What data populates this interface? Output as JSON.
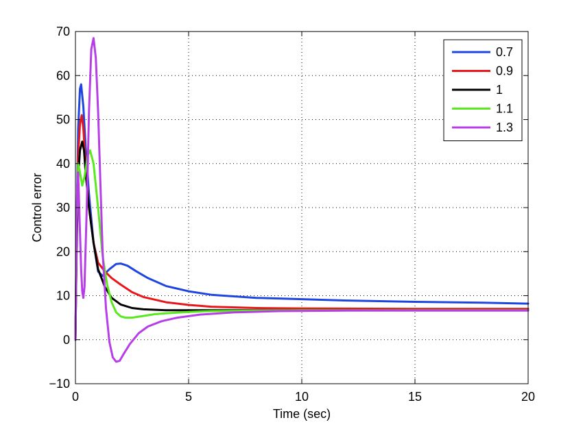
{
  "chart_data": {
    "type": "line",
    "title": "",
    "xlabel": "Time (sec)",
    "ylabel": "Control error",
    "xlim": [
      0,
      20
    ],
    "ylim": [
      -10,
      70
    ],
    "xticks": [
      0,
      5,
      10,
      15,
      20
    ],
    "yticks": [
      -10,
      0,
      10,
      20,
      30,
      40,
      50,
      60,
      70
    ],
    "xtick_labels": [
      "0",
      "5",
      "10",
      "15",
      "20"
    ],
    "ytick_labels": [
      "−10",
      "0",
      "10",
      "20",
      "30",
      "40",
      "50",
      "60",
      "70"
    ],
    "grid": true,
    "legend_position": "top-right",
    "series": [
      {
        "name": "0.7",
        "color": "#1f45e0",
        "x": [
          0,
          0.05,
          0.12,
          0.2,
          0.25,
          0.35,
          0.45,
          0.6,
          0.8,
          1.0,
          1.2,
          1.5,
          1.8,
          2.0,
          2.3,
          2.7,
          3.2,
          4,
          5,
          6,
          8,
          10,
          12,
          15,
          18,
          20
        ],
        "y": [
          0,
          25,
          48,
          57,
          58,
          53,
          44,
          33,
          22,
          15.5,
          14.5,
          16,
          17.2,
          17.3,
          16.8,
          15.5,
          14,
          12.2,
          11,
          10.2,
          9.5,
          9.2,
          8.9,
          8.6,
          8.4,
          8.2
        ]
      },
      {
        "name": "0.9",
        "color": "#e8161a",
        "x": [
          0,
          0.05,
          0.12,
          0.2,
          0.28,
          0.35,
          0.45,
          0.6,
          0.8,
          1.0,
          1.3,
          1.6,
          2.0,
          2.5,
          3,
          4,
          5,
          6,
          8,
          10,
          15,
          20
        ],
        "y": [
          0,
          22,
          42,
          49,
          51,
          48,
          40,
          30,
          22,
          17.5,
          15.5,
          14,
          12.5,
          10.8,
          9.7,
          8.5,
          7.9,
          7.5,
          7.2,
          7.1,
          7.0,
          7.0
        ]
      },
      {
        "name": "1",
        "color": "#000000",
        "x": [
          0,
          0.05,
          0.12,
          0.2,
          0.3,
          0.38,
          0.45,
          0.6,
          0.8,
          1.0,
          1.3,
          1.6,
          2.0,
          2.5,
          3,
          4,
          5,
          10,
          15,
          20
        ],
        "y": [
          0,
          20,
          37,
          43,
          45,
          43,
          38,
          30,
          22,
          16,
          12,
          9.5,
          8,
          7.2,
          6.9,
          6.7,
          6.7,
          6.7,
          6.7,
          6.7
        ]
      },
      {
        "name": "1.1",
        "color": "#5ae81e",
        "x": [
          0,
          0.05,
          0.12,
          0.2,
          0.3,
          0.4,
          0.55,
          0.65,
          0.8,
          1.0,
          1.2,
          1.4,
          1.6,
          1.8,
          2.0,
          2.2,
          2.5,
          3,
          3.5,
          4,
          5,
          6,
          8,
          10,
          15,
          20
        ],
        "y": [
          0,
          25,
          40,
          38,
          35,
          37,
          42,
          43,
          40,
          30,
          19,
          12.5,
          8.5,
          6.2,
          5.3,
          5.0,
          5.0,
          5.4,
          5.8,
          6.0,
          6.3,
          6.5,
          6.6,
          6.7,
          6.7,
          6.7
        ]
      },
      {
        "name": "1.3",
        "color": "#b73ee6",
        "x": [
          0,
          0.04,
          0.08,
          0.12,
          0.18,
          0.25,
          0.3,
          0.35,
          0.4,
          0.5,
          0.6,
          0.7,
          0.8,
          0.9,
          1.0,
          1.1,
          1.2,
          1.35,
          1.5,
          1.65,
          1.8,
          1.95,
          2.1,
          2.4,
          2.8,
          3.2,
          3.8,
          4.5,
          5.5,
          7,
          9,
          12,
          15,
          20
        ],
        "y": [
          0,
          18,
          35,
          38,
          28,
          16,
          11,
          9.5,
          12,
          30,
          52,
          66,
          68.5,
          64,
          52,
          36,
          20,
          7,
          -0.5,
          -4,
          -5,
          -4.8,
          -3.5,
          -1,
          1.5,
          3,
          4.2,
          5.0,
          5.7,
          6.2,
          6.5,
          6.6,
          6.6,
          6.6
        ]
      }
    ]
  }
}
